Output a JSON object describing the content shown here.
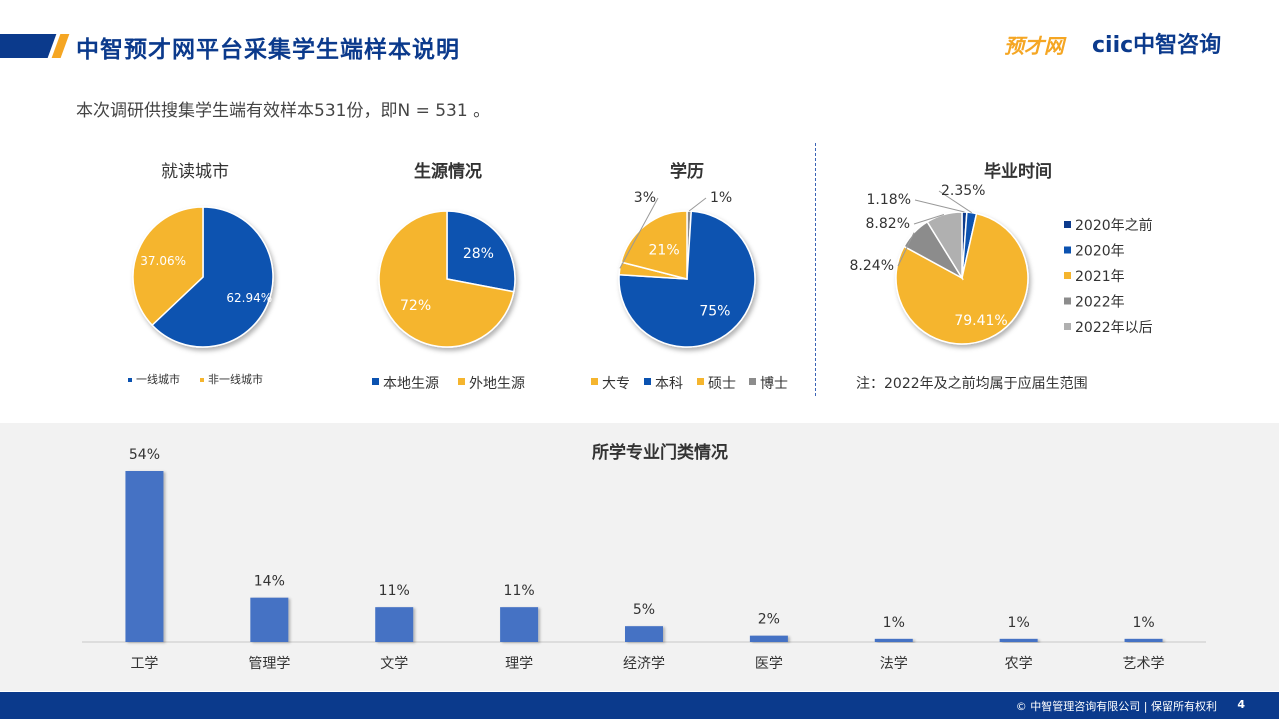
{
  "header": {
    "title": "中智预才网平台采集学生端样本说明",
    "logo_yucai": "预才网",
    "logo_ciic": "ciic中智咨询"
  },
  "subtitle": "本次调研供搜集学生端有效样本531份，即N = 531 。",
  "note": "注：2022年及之前均属于应届生范围",
  "footer": {
    "copyright": "© 中智管理咨询有限公司 | 保留所有权利",
    "page": "4"
  },
  "colors": {
    "blue": "#0b52b0",
    "orange": "#f5b52e",
    "gray": "#8c8c8c",
    "lightgray": "#b0b0b0",
    "bar": "#4472c4",
    "brand": "#0b3a8c"
  },
  "chart_data": [
    {
      "type": "pie",
      "title": "就读城市",
      "labels": [
        "一线城市",
        "非一线城市"
      ],
      "values": [
        62.94,
        37.06
      ],
      "data_labels": [
        "62.94%",
        "37.06%"
      ],
      "legend": "bottom"
    },
    {
      "type": "pie",
      "title": "生源情况",
      "labels": [
        "本地生源",
        "外地生源"
      ],
      "values": [
        28,
        72
      ],
      "data_labels": [
        "28%",
        "72%"
      ],
      "legend": "bottom"
    },
    {
      "type": "pie",
      "title": "学历",
      "labels": [
        "大专",
        "本科",
        "硕士",
        "博士"
      ],
      "values": [
        3,
        75,
        21,
        1
      ],
      "data_labels": [
        "3%",
        "75%",
        "21%",
        "1%"
      ],
      "legend": "bottom"
    },
    {
      "type": "pie",
      "title": "毕业时间",
      "labels": [
        "2020年之前",
        "2020年",
        "2021年",
        "2022年",
        "2022年以后"
      ],
      "values": [
        1.18,
        2.35,
        79.41,
        8.24,
        8.82
      ],
      "data_labels": [
        "1.18%",
        "2.35%",
        "79.41%",
        "8.24%",
        "8.82%"
      ],
      "legend": "right"
    },
    {
      "type": "bar",
      "title": "所学专业门类情况",
      "categories": [
        "工学",
        "管理学",
        "文学",
        "理学",
        "经济学",
        "医学",
        "法学",
        "农学",
        "艺术学"
      ],
      "values": [
        54,
        14,
        11,
        11,
        5,
        2,
        1,
        1,
        1
      ],
      "data_labels": [
        "54%",
        "14%",
        "11%",
        "11%",
        "5%",
        "2%",
        "1%",
        "1%",
        "1%"
      ],
      "ylim": [
        0,
        54
      ],
      "grid": false
    }
  ]
}
